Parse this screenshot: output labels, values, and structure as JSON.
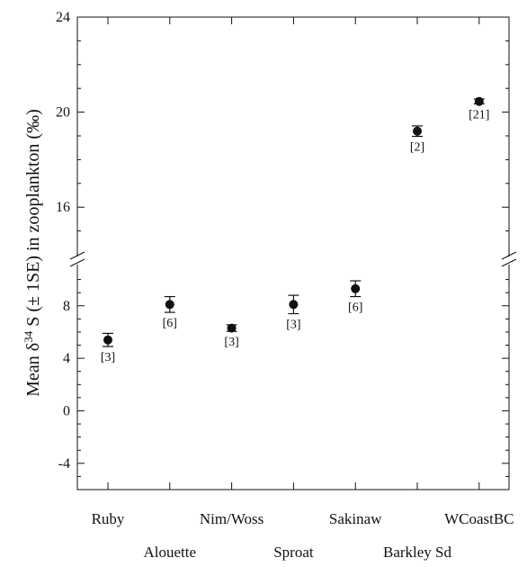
{
  "chart_data": {
    "type": "scatter",
    "ylabel_parts": {
      "prefix": "Mean δ",
      "superscript": "34",
      "suffix": " S (± 1SE) in zooplankton (‰)"
    },
    "y_break": {
      "lower_max": 11,
      "upper_min": 14
    },
    "ylim_lower": [
      -6,
      11
    ],
    "ylim_upper": [
      14,
      24
    ],
    "yticks_lower": [
      "-4",
      "0",
      "4",
      "8"
    ],
    "yticks_upper": [
      "16",
      "20",
      "24"
    ],
    "categories": [
      "Ruby",
      "Alouette",
      "Nim/Woss",
      "Sproat",
      "Sakinaw",
      "Barkley Sd",
      "WCoastBC"
    ],
    "points": [
      {
        "site": "Ruby",
        "mean": 5.4,
        "se": 0.5,
        "n_label": "[3]"
      },
      {
        "site": "Alouette",
        "mean": 8.1,
        "se": 0.6,
        "n_label": "[6]"
      },
      {
        "site": "Nim/Woss",
        "mean": 6.3,
        "se": 0.25,
        "n_label": "[3]"
      },
      {
        "site": "Sproat",
        "mean": 8.1,
        "se": 0.7,
        "n_label": "[3]"
      },
      {
        "site": "Sakinaw",
        "mean": 9.3,
        "se": 0.6,
        "n_label": "[6]"
      },
      {
        "site": "Barkley Sd",
        "mean": 19.2,
        "se": 0.22,
        "n_label": "[2]"
      },
      {
        "site": "WCoastBC",
        "mean": 20.45,
        "se": 0.1,
        "n_label": "[21]"
      }
    ]
  }
}
